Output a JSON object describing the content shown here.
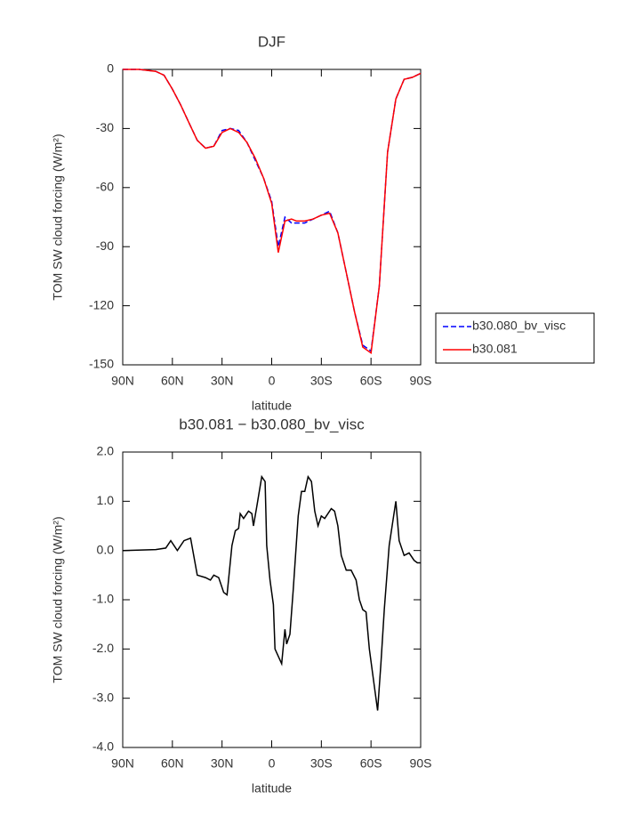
{
  "chart_data": [
    {
      "type": "line",
      "title": "DJF",
      "xlabel": "latitude",
      "ylabel": "TOM SW cloud forcing (W/m²)",
      "x": [
        90,
        85,
        80,
        75,
        70,
        65,
        60,
        55,
        50,
        45,
        40,
        35,
        30,
        25,
        20,
        15,
        10,
        5,
        0,
        -4,
        -8,
        -12,
        -15,
        -20,
        -25,
        -30,
        -35,
        -40,
        -45,
        -50,
        -55,
        -60,
        -65,
        -70,
        -75,
        -80,
        -85,
        -90
      ],
      "series": [
        {
          "name": "b30.080_bv_visc",
          "color": "#0000ff",
          "dashed": true,
          "values": [
            0,
            0,
            0,
            -0.5,
            -1,
            -3,
            -10,
            -18,
            -27,
            -36,
            -40,
            -39,
            -31,
            -30,
            -31,
            -37,
            -46,
            -55,
            -67,
            -90,
            -75,
            -78,
            -78,
            -78,
            -76,
            -74,
            -72,
            -83,
            -103,
            -123,
            -140,
            -143,
            -110,
            -42,
            -15,
            -5,
            -4,
            -2
          ]
        },
        {
          "name": "b30.081",
          "color": "#ff0000",
          "dashed": false,
          "values": [
            0,
            0,
            0,
            -0.5,
            -1,
            -3,
            -10,
            -18,
            -27,
            -36,
            -40,
            -39,
            -32,
            -30,
            -32,
            -37,
            -45,
            -55,
            -68,
            -93,
            -77,
            -76,
            -77,
            -77,
            -76,
            -74,
            -73,
            -83,
            -103,
            -123,
            -141,
            -144,
            -110,
            -42,
            -15,
            -5,
            -4,
            -2
          ]
        }
      ],
      "xlim": [
        90,
        -90
      ],
      "xticks": [
        {
          "value": 90,
          "label": "90N"
        },
        {
          "value": 60,
          "label": "60N"
        },
        {
          "value": 30,
          "label": "30N"
        },
        0,
        {
          "value": -30,
          "label": "30S"
        },
        {
          "value": -60,
          "label": "60S"
        },
        {
          "value": -90,
          "label": "90S"
        }
      ],
      "ylim": [
        -150,
        0
      ],
      "yticks": [
        0,
        -30,
        -60,
        -90,
        -120,
        -150
      ],
      "legend": "right"
    },
    {
      "type": "line",
      "title": "b30.081 − b30.080_bv_visc",
      "xlabel": "latitude",
      "ylabel": "TOM SW cloud forcing (W/m²)",
      "x": [
        90,
        70,
        64,
        61,
        57,
        53,
        49,
        45,
        40,
        37,
        35,
        32,
        29,
        27,
        24,
        22,
        20,
        19,
        17,
        14,
        12,
        11,
        9,
        6,
        4,
        3,
        1,
        -1,
        -2,
        -6,
        -8,
        -9,
        -11,
        -13,
        -16,
        -18,
        -20,
        -22,
        -24,
        -26,
        -28,
        -30,
        -32,
        -36,
        -38,
        -40,
        -42,
        -45,
        -48,
        -51,
        -53,
        -55,
        -57,
        -59,
        -61,
        -64,
        -66,
        -68,
        -71,
        -75,
        -77,
        -80,
        -83,
        -86,
        -88,
        -90
      ],
      "color": "#000000",
      "values": [
        0,
        0.02,
        0.05,
        0.2,
        0.0,
        0.2,
        0.25,
        -0.5,
        -0.55,
        -0.6,
        -0.5,
        -0.55,
        -0.85,
        -0.9,
        0.1,
        0.4,
        0.45,
        0.75,
        0.65,
        0.8,
        0.75,
        0.5,
        0.9,
        1.5,
        1.4,
        0.1,
        -0.6,
        -1.1,
        -2.0,
        -2.3,
        -1.6,
        -1.9,
        -1.7,
        -0.8,
        0.7,
        1.2,
        1.2,
        1.5,
        1.4,
        0.8,
        0.5,
        0.7,
        0.65,
        0.85,
        0.8,
        0.5,
        -0.1,
        -0.4,
        -0.4,
        -0.6,
        -1.0,
        -1.2,
        -1.25,
        -2.0,
        -2.5,
        -3.25,
        -2.3,
        -1.2,
        0.1,
        1.0,
        0.2,
        -0.1,
        -0.05,
        -0.2,
        -0.25,
        -0.25
      ],
      "xlim": [
        90,
        -90
      ],
      "xticks": [
        {
          "value": 90,
          "label": "90N"
        },
        {
          "value": 60,
          "label": "60N"
        },
        {
          "value": 30,
          "label": "30N"
        },
        0,
        {
          "value": -30,
          "label": "30S"
        },
        {
          "value": -60,
          "label": "60S"
        },
        {
          "value": -90,
          "label": "90S"
        }
      ],
      "ylim": [
        -4,
        2
      ],
      "yticks": [
        {
          "value": 2,
          "label": "2.0"
        },
        {
          "value": 1,
          "label": "1.0"
        },
        {
          "value": 0,
          "label": "0.0"
        },
        {
          "value": -1,
          "label": "-1.0"
        },
        {
          "value": -2,
          "label": "-2.0"
        },
        {
          "value": -3,
          "label": "-3.0"
        },
        {
          "value": -4,
          "label": "-4.0"
        }
      ]
    }
  ]
}
